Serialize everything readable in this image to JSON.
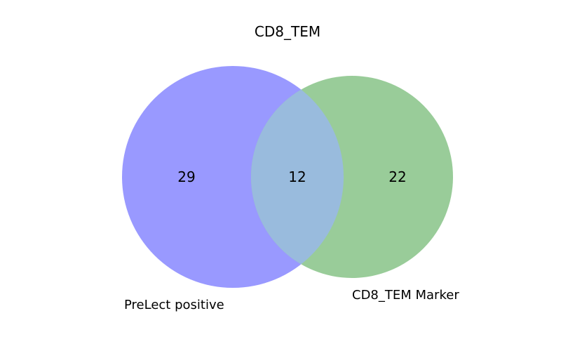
{
  "title": "CD8_TEM",
  "sets": [
    {
      "label": "PreLect positive",
      "color": "#9999ff",
      "only_count": "29"
    },
    {
      "label": "CD8_TEM Marker",
      "color": "#99cc99",
      "only_count": "22"
    }
  ],
  "intersection": {
    "count": "12",
    "color": "#99bbdd"
  },
  "chart_data": {
    "type": "venn",
    "sets": [
      "PreLect positive",
      "CD8_TEM Marker"
    ],
    "regions": {
      "PreLect positive only": 29,
      "intersection": 12,
      "CD8_TEM Marker only": 22
    }
  }
}
